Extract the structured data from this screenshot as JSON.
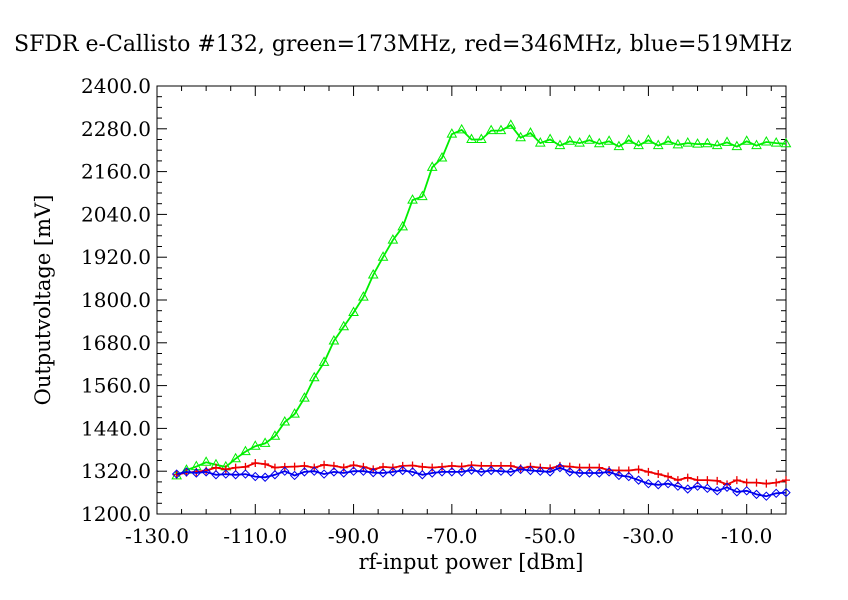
{
  "chart_data": {
    "type": "line",
    "title": "SFDR e-Callisto #132, green=173MHz, red=346MHz, blue=519MHz",
    "xlabel": "rf-input power [dBm]",
    "ylabel": "Outputvoltage [mV]",
    "xlim": [
      -130,
      -2
    ],
    "ylim": [
      1200,
      2400
    ],
    "xticks": [
      "-130.0",
      "-110.0",
      "-90.0",
      "-70.0",
      "-50.0",
      "-30.0",
      "-10.0"
    ],
    "xtick_values": [
      -130,
      -110,
      -90,
      -70,
      -50,
      -30,
      -10
    ],
    "yticks": [
      "1200.0",
      "1320.0",
      "1440.0",
      "1560.0",
      "1680.0",
      "1800.0",
      "1920.0",
      "2040.0",
      "2160.0",
      "2280.0",
      "2400.0"
    ],
    "ytick_values": [
      1200,
      1320,
      1440,
      1560,
      1680,
      1800,
      1920,
      2040,
      2160,
      2280,
      2400
    ],
    "grid": false,
    "x": [
      -126,
      -124,
      -122,
      -120,
      -118,
      -116,
      -114,
      -112,
      -110,
      -108,
      -106,
      -104,
      -102,
      -100,
      -98,
      -96,
      -94,
      -92,
      -90,
      -88,
      -86,
      -84,
      -82,
      -80,
      -78,
      -76,
      -74,
      -72,
      -70,
      -68,
      -66,
      -64,
      -62,
      -60,
      -58,
      -56,
      -54,
      -52,
      -50,
      -48,
      -46,
      -44,
      -42,
      -40,
      -38,
      -36,
      -34,
      -32,
      -30,
      -28,
      -26,
      -24,
      -22,
      -20,
      -18,
      -16,
      -14,
      -12,
      -10,
      -8,
      -6,
      -4,
      -2
    ],
    "series": [
      {
        "name": "green",
        "color": "#00ee00",
        "marker": "triangle",
        "values": [
          1307,
          1323,
          1333,
          1345,
          1338,
          1332,
          1355,
          1375,
          1390,
          1398,
          1418,
          1458,
          1480,
          1525,
          1582,
          1625,
          1685,
          1725,
          1765,
          1808,
          1870,
          1920,
          1968,
          2005,
          2080,
          2090,
          2172,
          2198,
          2265,
          2277,
          2250,
          2250,
          2275,
          2275,
          2290,
          2255,
          2268,
          2240,
          2250,
          2233,
          2245,
          2240,
          2248,
          2238,
          2245,
          2230,
          2248,
          2233,
          2248,
          2233,
          2245,
          2235,
          2240,
          2237,
          2238,
          2233,
          2242,
          2230,
          2245,
          2233,
          2243,
          2240,
          2238
        ]
      },
      {
        "name": "red",
        "color": "#ee0000",
        "marker": "plus",
        "values": [
          1310,
          1316,
          1318,
          1322,
          1330,
          1325,
          1330,
          1332,
          1343,
          1340,
          1330,
          1332,
          1333,
          1335,
          1330,
          1338,
          1335,
          1330,
          1337,
          1332,
          1325,
          1332,
          1330,
          1335,
          1336,
          1332,
          1330,
          1332,
          1335,
          1333,
          1337,
          1335,
          1335,
          1335,
          1335,
          1328,
          1333,
          1330,
          1328,
          1335,
          1333,
          1330,
          1330,
          1330,
          1323,
          1322,
          1322,
          1325,
          1318,
          1312,
          1305,
          1295,
          1302,
          1295,
          1295,
          1293,
          1283,
          1295,
          1288,
          1288,
          1285,
          1288,
          1295
        ]
      },
      {
        "name": "blue",
        "color": "#0000ee",
        "marker": "diamond",
        "values": [
          1312,
          1318,
          1315,
          1318,
          1310,
          1312,
          1310,
          1312,
          1305,
          1303,
          1310,
          1320,
          1308,
          1318,
          1320,
          1312,
          1318,
          1315,
          1320,
          1320,
          1316,
          1315,
          1318,
          1322,
          1318,
          1310,
          1315,
          1318,
          1318,
          1318,
          1323,
          1318,
          1322,
          1320,
          1318,
          1325,
          1322,
          1320,
          1318,
          1330,
          1318,
          1315,
          1315,
          1315,
          1318,
          1308,
          1305,
          1295,
          1285,
          1282,
          1285,
          1278,
          1270,
          1278,
          1272,
          1265,
          1275,
          1262,
          1265,
          1255,
          1250,
          1258,
          1260
        ]
      }
    ]
  }
}
